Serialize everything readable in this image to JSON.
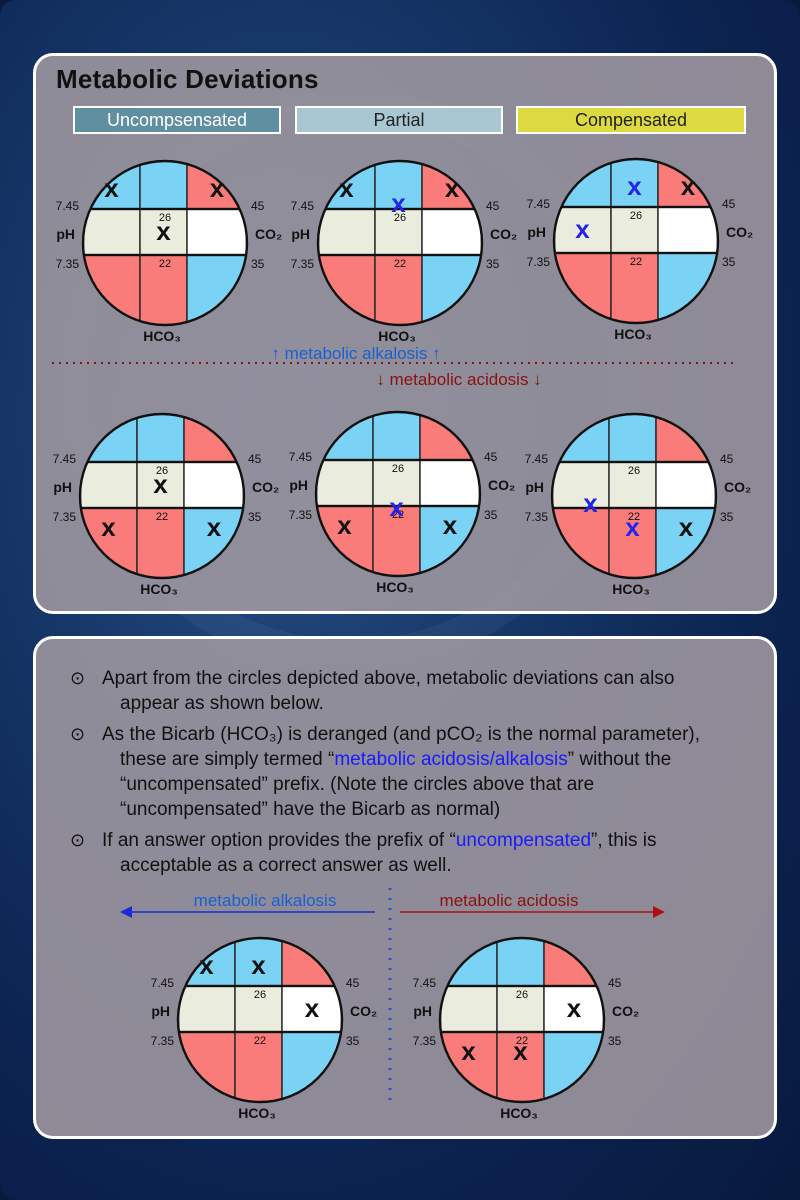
{
  "title": "Metabolic Deviations",
  "tags": {
    "uncompensated": "Uncompsensated",
    "partial": "Partial",
    "compensated": "Compensated"
  },
  "colors": {
    "red": "#f97c7b",
    "blue": "#7ad3f5",
    "normal": "#eaecdd",
    "white": "#ffffff",
    "x_black": "#111111",
    "x_blue": "#2323ee",
    "alkalosis": "#1a5fd0",
    "acidosis": "#8b1010"
  },
  "circle_labels": {
    "ph": "pH",
    "co2": "CO₂",
    "hco3": "HCO₃",
    "ph_high": "7.45",
    "ph_low": "7.35",
    "co2_high": "45",
    "co2_low": "35",
    "hco3_high": "26",
    "hco3_low": "22"
  },
  "divider": {
    "alkalosis": "↑ metabolic alkalosis ↑",
    "acidosis": "↓ metabolic acidosis ↓"
  },
  "bottom_arrows": {
    "alkalosis": "metabolic alkalosis",
    "acidosis": "metabolic acidosis"
  },
  "bullets": {
    "b1_line1": "Apart from the circles depicted above, metabolic deviations can also",
    "b1_line2": "appear as shown below.",
    "b2_line1": "As the Bicarb (HCO₃) is deranged (and pCO₂ is the normal parameter),",
    "b2_line2_pre": "these are simply termed “",
    "b2_line2_hl": "metabolic acidosis/alkalosis",
    "b2_line2_post": "” without the",
    "b2_line3": "“uncompensated” prefix. (Note the circles above that are",
    "b2_line4": "“uncompensated” have the Bicarb as normal)",
    "b3_line1_pre": "If an answer option provides the prefix of “",
    "b3_line1_hl": "uncompensated",
    "b3_line1_post": "”, this is",
    "b3_line2": "acceptable as a correct answer as well."
  },
  "diagrams": [
    {
      "name": "uncompensated-alkalosis",
      "cells": {
        "tl": "blue",
        "tm": "blue",
        "tr": "red",
        "mr": "white",
        "bl": "red",
        "bm": "red",
        "br": "blue"
      },
      "marks": [
        {
          "cell": "tl",
          "c": "black"
        },
        {
          "cell": "tr",
          "c": "black"
        },
        {
          "cell": "mm",
          "c": "black"
        }
      ]
    },
    {
      "name": "partial-alkalosis",
      "cells": {
        "tl": "blue",
        "tm": "blue",
        "tr": "red",
        "mr": "white",
        "bl": "red",
        "bm": "red",
        "br": "blue"
      },
      "marks": [
        {
          "cell": "tl",
          "c": "black"
        },
        {
          "cell": "tr",
          "c": "black"
        },
        {
          "cell": "tm-low",
          "c": "blue"
        }
      ]
    },
    {
      "name": "compensated-alkalosis",
      "cells": {
        "tl": "blue",
        "tm": "blue",
        "tr": "red",
        "mr": "white",
        "bl": "red",
        "bm": "red",
        "br": "blue"
      },
      "marks": [
        {
          "cell": "tm",
          "c": "blue"
        },
        {
          "cell": "tr",
          "c": "black"
        },
        {
          "cell": "ml",
          "c": "blue"
        }
      ]
    },
    {
      "name": "uncompensated-acidosis",
      "cells": {
        "tl": "blue",
        "tm": "blue",
        "tr": "red",
        "mr": "white",
        "bl": "red",
        "bm": "red",
        "br": "blue"
      },
      "marks": [
        {
          "cell": "mm",
          "c": "black"
        },
        {
          "cell": "bl",
          "c": "black"
        },
        {
          "cell": "br",
          "c": "black"
        }
      ]
    },
    {
      "name": "partial-acidosis",
      "cells": {
        "tl": "blue",
        "tm": "blue",
        "tr": "red",
        "mr": "white",
        "bl": "red",
        "bm": "red",
        "br": "blue"
      },
      "marks": [
        {
          "cell": "bl",
          "c": "black"
        },
        {
          "cell": "bm-high",
          "c": "blue"
        },
        {
          "cell": "br",
          "c": "black"
        }
      ]
    },
    {
      "name": "compensated-acidosis",
      "cells": {
        "tl": "blue",
        "tm": "blue",
        "tr": "red",
        "mr": "white",
        "bl": "red",
        "bm": "red",
        "br": "blue"
      },
      "marks": [
        {
          "cell": "ml-low",
          "c": "blue"
        },
        {
          "cell": "bm",
          "c": "blue"
        },
        {
          "cell": "br",
          "c": "black"
        }
      ]
    },
    {
      "name": "example-alkalosis",
      "cells": {
        "tl": "blue",
        "tm": "blue",
        "tr": "red",
        "mr": "white",
        "bl": "red",
        "bm": "red",
        "br": "blue"
      },
      "marks": [
        {
          "cell": "tl",
          "c": "black"
        },
        {
          "cell": "tm",
          "c": "black"
        },
        {
          "cell": "mr",
          "c": "black"
        }
      ]
    },
    {
      "name": "example-acidosis",
      "cells": {
        "tl": "blue",
        "tm": "blue",
        "tr": "red",
        "mr": "white",
        "bl": "red",
        "bm": "red",
        "br": "blue"
      },
      "marks": [
        {
          "cell": "mr",
          "c": "black"
        },
        {
          "cell": "bl",
          "c": "black"
        },
        {
          "cell": "bm",
          "c": "black"
        }
      ]
    }
  ]
}
